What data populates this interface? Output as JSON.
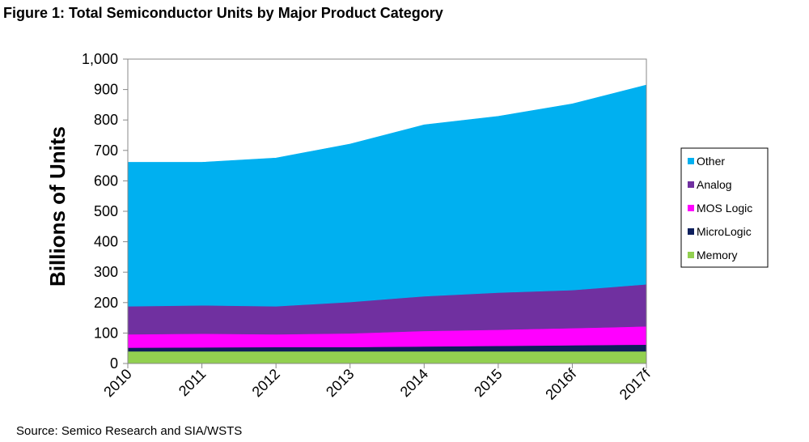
{
  "figure": {
    "title": "Figure 1:  Total Semiconductor Units by Major Product Category",
    "source": "Source:  Semico Research and SIA/WSTS"
  },
  "chart_data": {
    "type": "area",
    "stacked": true,
    "title": "Figure 1:  Total Semiconductor Units by Major Product Category",
    "xlabel": "",
    "ylabel": "Billions of Units",
    "ylim": [
      0,
      1000
    ],
    "y_ticks": [
      0,
      100,
      200,
      300,
      400,
      500,
      600,
      700,
      800,
      900,
      1000
    ],
    "y_tick_labels": [
      "0",
      "100",
      "200",
      "300",
      "400",
      "500",
      "600",
      "700",
      "800",
      "900",
      "1,000"
    ],
    "categories": [
      "2010",
      "2011",
      "2012",
      "2013",
      "2014",
      "2015",
      "2016f",
      "2017f"
    ],
    "series": [
      {
        "name": "Memory",
        "color": "#92d050",
        "values": [
          40,
          40,
          40,
          40,
          40,
          40,
          40,
          40
        ]
      },
      {
        "name": "MicroLogic",
        "color": "#0d1f5c",
        "values": [
          12,
          13,
          14,
          14,
          16,
          18,
          20,
          22
        ]
      },
      {
        "name": "MOS Logic",
        "color": "#ff00ff",
        "values": [
          44,
          45,
          42,
          45,
          51,
          53,
          56,
          60
        ]
      },
      {
        "name": "Analog",
        "color": "#7030a0",
        "values": [
          92,
          93,
          92,
          103,
          114,
          122,
          125,
          138
        ]
      },
      {
        "name": "Other",
        "color": "#00b0f0",
        "values": [
          473,
          470,
          487,
          519,
          563,
          579,
          612,
          655
        ]
      }
    ],
    "legend_order": [
      "Other",
      "Analog",
      "MOS Logic",
      "MicroLogic",
      "Memory"
    ],
    "legend_position": "right",
    "grid": false
  }
}
